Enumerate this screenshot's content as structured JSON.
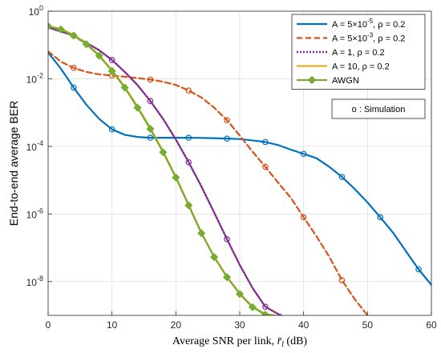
{
  "chart_data": {
    "type": "line",
    "xlabel": "Average SNR per link, r̄l (dB)",
    "ylabel": "End-to-end average BER",
    "xlim": [
      0,
      60
    ],
    "ylim": [
      1e-09,
      1
    ],
    "yscale": "log",
    "grid": true,
    "x_ticks": [
      0,
      10,
      20,
      30,
      40,
      50,
      60
    ],
    "y_ticks": [
      {
        "value": 1,
        "base": "10",
        "exp": "0"
      },
      {
        "value": 0.01,
        "base": "10",
        "exp": "-2"
      },
      {
        "value": 0.0001,
        "base": "10",
        "exp": "-4"
      },
      {
        "value": 1e-06,
        "base": "10",
        "exp": "-6"
      },
      {
        "value": 1e-08,
        "base": "10",
        "exp": "-8"
      }
    ],
    "legend_position": "top-right",
    "series": [
      {
        "name": "A = 5×10−5, ρ = 0.2",
        "legend": {
          "pre": "A = 5×10",
          "sup": "-5",
          "post": ", ρ = 0.2"
        },
        "color": "#0072BD",
        "dash": "",
        "width": 2.2,
        "x": [
          0,
          2,
          4,
          6,
          8,
          10,
          12,
          14,
          16,
          18,
          20,
          22,
          24,
          26,
          28,
          30,
          32,
          34,
          36,
          38,
          40,
          42,
          44,
          46,
          48,
          50,
          52,
          54,
          56,
          58,
          60
        ],
        "y": [
          0.06,
          0.02,
          0.0055,
          0.0017,
          0.00065,
          0.00032,
          0.00022,
          0.00019,
          0.00018,
          0.00018,
          0.00018,
          0.00018,
          0.000178,
          0.000175,
          0.00017,
          0.000165,
          0.00015,
          0.000135,
          0.00011,
          8e-05,
          6e-05,
          4.5e-05,
          2.5e-05,
          1.25e-05,
          5.5e-06,
          2.2e-06,
          8e-07,
          2.8e-07,
          8e-08,
          2.3e-08,
          8e-09
        ],
        "sim_x": [
          4,
          10,
          16,
          22,
          28,
          34,
          40,
          46,
          52,
          58
        ],
        "sim_y": [
          0.0055,
          0.00032,
          0.00018,
          0.00018,
          0.00017,
          0.000135,
          6e-05,
          1.25e-05,
          8e-07,
          2.3e-08
        ]
      },
      {
        "name": "A = 5×10−3, ρ = 0.2",
        "legend": {
          "pre": "A = 5×10",
          "sup": "-3",
          "post": ", ρ = 0.2"
        },
        "color": "#D95319",
        "dash": "7,4",
        "width": 2.2,
        "x": [
          0,
          2,
          4,
          6,
          8,
          10,
          12,
          14,
          16,
          18,
          20,
          22,
          24,
          26,
          28,
          30,
          32,
          34,
          36,
          38,
          40,
          42,
          44,
          46,
          48,
          50
        ],
        "y": [
          0.065,
          0.032,
          0.021,
          0.016,
          0.0135,
          0.0125,
          0.0115,
          0.0105,
          0.0095,
          0.0082,
          0.0066,
          0.0045,
          0.0028,
          0.0014,
          0.0006,
          0.00021,
          7e-05,
          2.5e-05,
          8.5e-06,
          3e-06,
          8e-07,
          2.2e-07,
          5.5e-08,
          1.1e-08,
          3e-09,
          1e-09
        ],
        "sim_x": [
          4,
          10,
          16,
          22,
          28,
          34,
          40,
          46
        ],
        "sim_y": [
          0.021,
          0.0125,
          0.0095,
          0.0045,
          0.0006,
          2.5e-05,
          8e-07,
          1.1e-08
        ]
      },
      {
        "name": "A = 1, ρ = 0.2",
        "legend": {
          "pre": "A = 1, ρ = 0.2",
          "sup": "",
          "post": ""
        },
        "color": "#7E2F8E",
        "dash": "2,2",
        "width": 2.4,
        "x": [
          0,
          4,
          8,
          10,
          12,
          14,
          16,
          18,
          20,
          22,
          24,
          26,
          28,
          30,
          32,
          34,
          36,
          36.5
        ],
        "y": [
          0.33,
          0.19,
          0.07,
          0.036,
          0.016,
          0.0065,
          0.0022,
          0.00065,
          0.00016,
          3.4e-05,
          6.5e-06,
          1.1e-06,
          1.8e-07,
          3.1e-08,
          6.5e-09,
          1.8e-09,
          1.1e-09,
          1e-09
        ],
        "sim_x": [
          4,
          10,
          16,
          22,
          28,
          34
        ],
        "sim_y": [
          0.19,
          0.036,
          0.0022,
          3.4e-05,
          1.8e-07,
          1.8e-09
        ]
      },
      {
        "name": "A = 10, ρ = 0.2",
        "legend": {
          "pre": "A = 10, ρ = 0.2",
          "sup": "",
          "post": ""
        },
        "color": "#EDB120",
        "dash": "",
        "width": 2.2,
        "x": [
          0,
          2,
          4,
          6,
          8,
          10,
          12,
          14,
          16,
          18,
          20,
          22,
          24,
          26,
          28,
          30,
          32,
          34,
          35.5
        ],
        "y": [
          0.36,
          0.3,
          0.2,
          0.11,
          0.05,
          0.018,
          0.0058,
          0.0015,
          0.00035,
          7.1e-05,
          1.25e-05,
          1.9e-06,
          2.8e-07,
          5.5e-08,
          1.4e-08,
          4.5e-09,
          1.8e-09,
          1.1e-09,
          1e-09
        ]
      },
      {
        "name": "AWGN",
        "legend": {
          "pre": "AWGN",
          "sup": "",
          "post": ""
        },
        "color": "#77AC30",
        "dash": "",
        "width": 2.2,
        "marker": "diamond",
        "x": [
          0,
          2,
          4,
          6,
          8,
          10,
          12,
          14,
          16,
          18,
          20,
          22,
          24,
          26,
          28,
          30,
          32,
          34,
          35.3
        ],
        "y": [
          0.36,
          0.29,
          0.19,
          0.105,
          0.048,
          0.017,
          0.0055,
          0.0014,
          0.00033,
          6.7e-05,
          1.2e-05,
          1.8e-06,
          2.7e-07,
          5.3e-08,
          1.35e-08,
          4.3e-09,
          1.75e-09,
          1.05e-09,
          1e-09
        ],
        "marker_x": [
          0,
          2,
          4,
          6,
          8,
          10,
          12,
          14,
          16,
          18,
          20,
          22,
          24,
          26,
          28,
          30,
          32,
          34
        ],
        "marker_y": [
          0.36,
          0.29,
          0.19,
          0.105,
          0.048,
          0.017,
          0.0055,
          0.0014,
          0.00033,
          6.7e-05,
          1.2e-05,
          1.8e-06,
          2.7e-07,
          5.3e-08,
          1.35e-08,
          4.3e-09,
          1.75e-09,
          1.05e-09
        ]
      }
    ],
    "annotation": "o : Simulation"
  }
}
